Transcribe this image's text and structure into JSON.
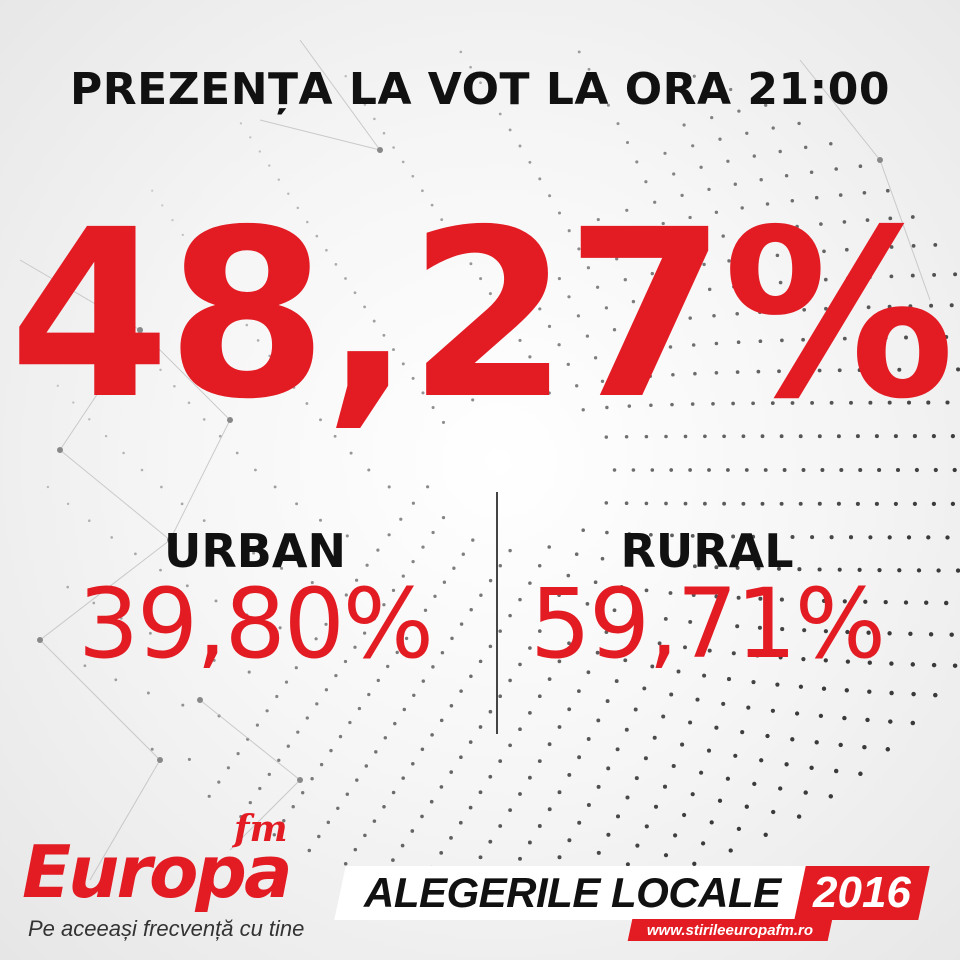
{
  "headline": {
    "title": "PREZENȚA LA VOT LA ORA 21:00",
    "total": "48,27%"
  },
  "breakdown": {
    "urban": {
      "label": "URBAN",
      "value": "39,80%"
    },
    "rural": {
      "label": "RURAL",
      "value": "59,71%"
    }
  },
  "logo": {
    "suffix": "fm",
    "brand": "Europa",
    "slogan": "Pe aceeași frecvență cu tine"
  },
  "event": {
    "name": "ALEGERILE LOCALE",
    "year": "2016",
    "website": "www.stirileeuropafm.ro"
  },
  "colors": {
    "accent": "#e31b23",
    "text": "#111111",
    "background": "#f4f4f4"
  }
}
